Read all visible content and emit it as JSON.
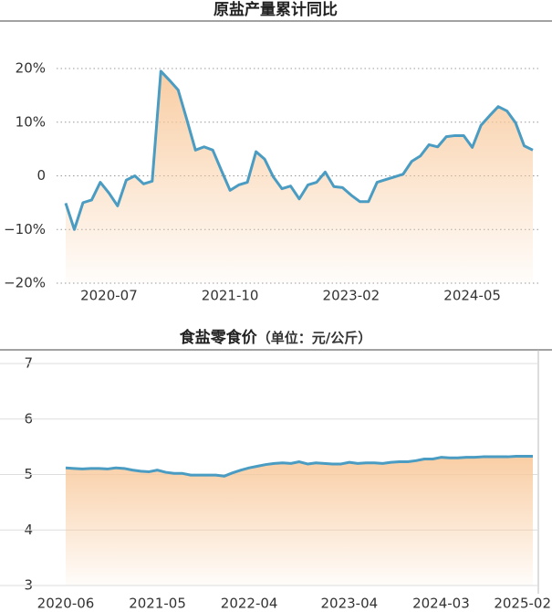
{
  "chart_data": [
    {
      "type": "line",
      "title": "原盐产量累计同比",
      "categories": [
        null,
        null,
        null,
        null,
        null,
        "2020-07",
        null,
        null,
        null,
        null,
        null,
        null,
        null,
        null,
        null,
        null,
        null,
        null,
        null,
        "2021-10",
        null,
        null,
        null,
        null,
        null,
        null,
        null,
        null,
        null,
        null,
        null,
        null,
        null,
        "2023-02",
        null,
        null,
        null,
        null,
        null,
        null,
        null,
        null,
        null,
        null,
        null,
        null,
        null,
        "2024-05",
        null,
        null,
        null,
        null,
        null,
        null,
        null
      ],
      "series": [
        {
          "name": "原盐产量累计同比",
          "color": "#4a9cc2",
          "values": [
            -5.1,
            -10,
            -5,
            -4.5,
            -1.2,
            -3.2,
            -5.6,
            -0.8,
            0,
            -1.5,
            -1,
            19.5,
            17.8,
            16,
            10.5,
            4.8,
            5.4,
            4.8,
            1,
            -2.7,
            -1.7,
            -1.2,
            4.5,
            3.1,
            -0.2,
            -2.4,
            -1.9,
            -4.3,
            -1.7,
            -1.2,
            0.7,
            -2,
            -2.2,
            -3.6,
            -4.8,
            -4.8,
            -1.2,
            -0.7,
            -0.2,
            0.3,
            2.7,
            3.7,
            5.8,
            5.4,
            7.3,
            7.5,
            7.5,
            5.3,
            9.4,
            11.2,
            12.9,
            12.1,
            9.9,
            5.6,
            4.8
          ]
        }
      ],
      "ylim": [
        -20,
        20
      ],
      "yticks": [
        {
          "value": 20,
          "label": "20%"
        },
        {
          "value": 10,
          "label": "10%"
        },
        0,
        {
          "value": -10,
          "label": "−10%"
        },
        {
          "value": -20,
          "label": "−20%"
        }
      ],
      "grid": "dotted",
      "fill": "#f8c89a"
    },
    {
      "type": "line",
      "title": "食盐零食价",
      "subtitle": "（单位：元/公斤）",
      "categories": [
        "2020-06",
        null,
        null,
        null,
        null,
        null,
        null,
        null,
        null,
        null,
        null,
        "2021-05",
        null,
        null,
        null,
        null,
        null,
        null,
        null,
        null,
        null,
        null,
        "2022-04",
        null,
        null,
        null,
        null,
        null,
        null,
        null,
        null,
        null,
        null,
        null,
        "2023-04",
        null,
        null,
        null,
        null,
        null,
        null,
        null,
        null,
        null,
        null,
        "2024-03",
        null,
        null,
        null,
        null,
        null,
        null,
        null,
        null,
        null,
        null,
        "2025-02"
      ],
      "series": [
        {
          "name": "食盐零食价",
          "color": "#4a9cc2",
          "values": [
            5.12,
            5.11,
            5.1,
            5.11,
            5.11,
            5.1,
            5.12,
            5.11,
            5.08,
            5.06,
            5.05,
            5.08,
            5.04,
            5.02,
            5.02,
            4.99,
            4.99,
            4.99,
            4.99,
            4.97,
            5.03,
            5.08,
            5.12,
            5.15,
            5.18,
            5.2,
            5.21,
            5.2,
            5.23,
            5.19,
            5.21,
            5.2,
            5.19,
            5.19,
            5.22,
            5.2,
            5.21,
            5.21,
            5.2,
            5.22,
            5.23,
            5.23,
            5.25,
            5.28,
            5.28,
            5.31,
            5.3,
            5.3,
            5.31,
            5.31,
            5.32,
            5.32,
            5.32,
            5.32,
            5.33,
            5.33,
            5.33
          ]
        }
      ],
      "ylim": [
        3,
        7
      ],
      "yticks": [
        3,
        4,
        5,
        6,
        7
      ],
      "grid": "solid",
      "fill": "#f8c89a"
    }
  ]
}
